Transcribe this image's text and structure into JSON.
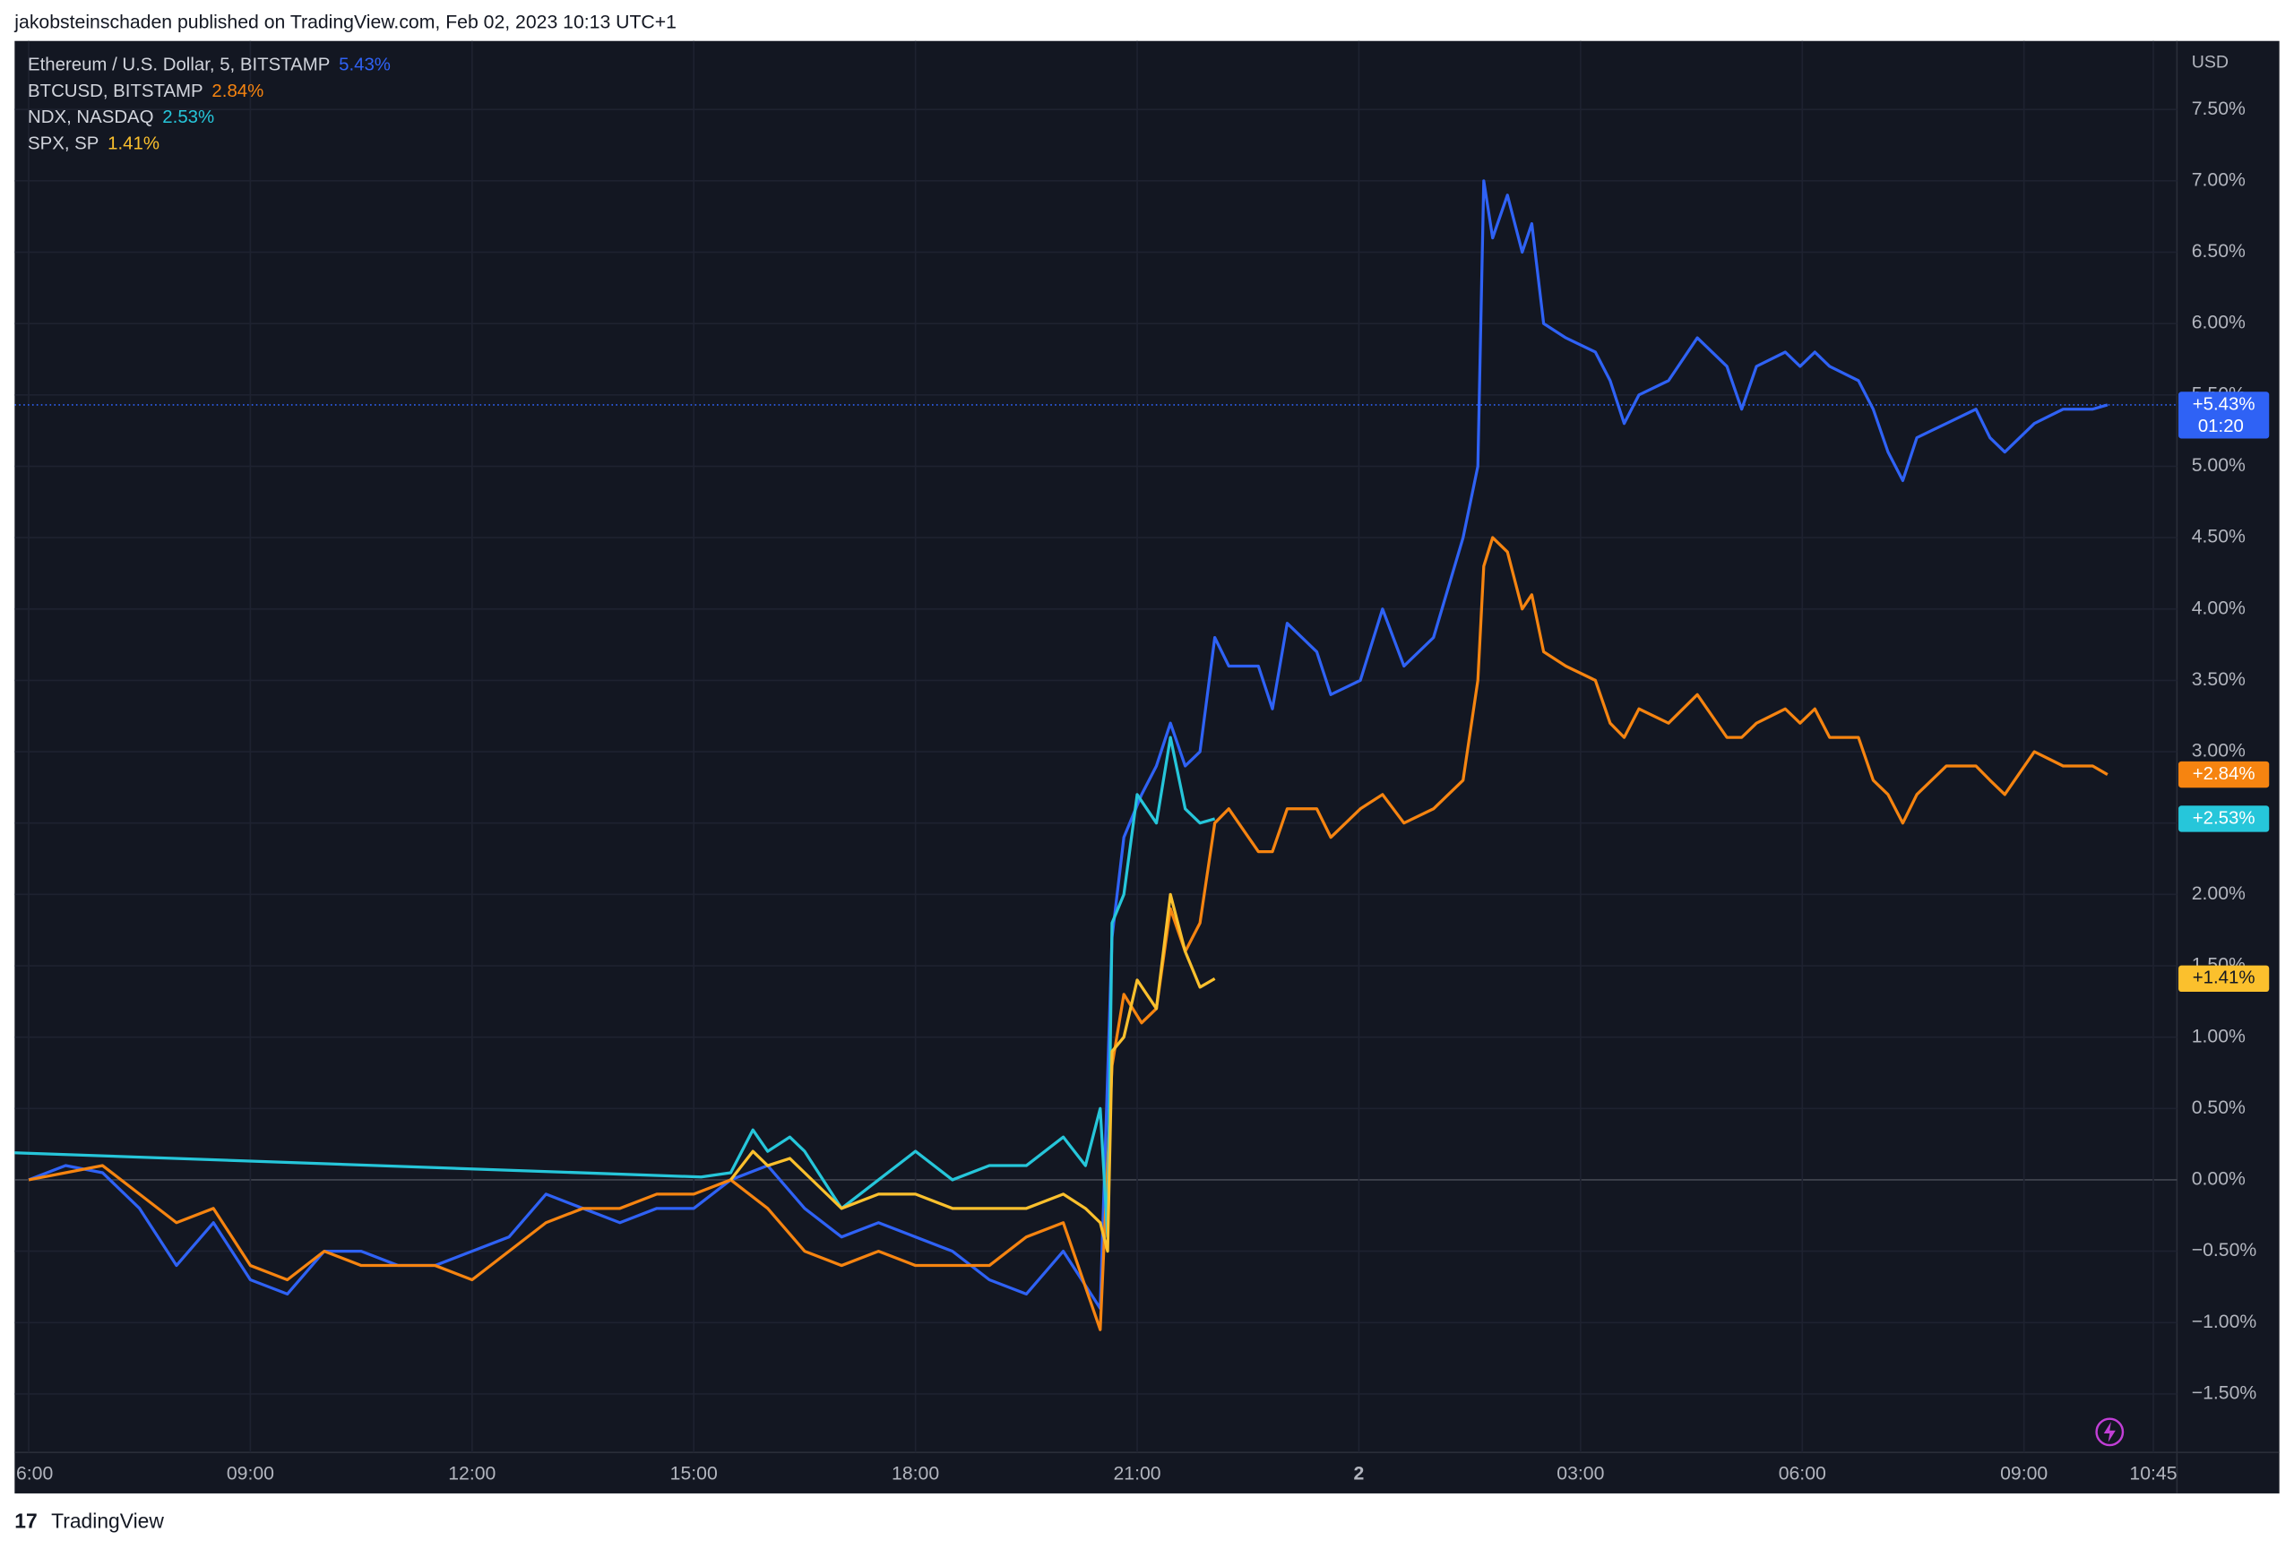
{
  "header": {
    "text": "jakobsteinschaden published on TradingView.com, Feb 02, 2023 10:13 UTC+1"
  },
  "footer": {
    "brand": "TradingView"
  },
  "chart_data": {
    "type": "line",
    "y_unit": "USD",
    "xlim": [
      5.81,
      35.07
    ],
    "xticks": [
      {
        "value": 6,
        "label": "6:00"
      },
      {
        "value": 9,
        "label": "09:00"
      },
      {
        "value": 12,
        "label": "12:00"
      },
      {
        "value": 15,
        "label": "15:00"
      },
      {
        "value": 18,
        "label": "18:00"
      },
      {
        "value": 21,
        "label": "21:00"
      },
      {
        "value": 24,
        "label": "2"
      },
      {
        "value": 27,
        "label": "03:00"
      },
      {
        "value": 30,
        "label": "06:00"
      },
      {
        "value": 33,
        "label": "09:00"
      },
      {
        "value": 34.75,
        "label": "10:45"
      }
    ],
    "ylim": [
      -1.91,
      7.98
    ],
    "yticks": [
      {
        "value": -1.5,
        "label": "−1.50%"
      },
      {
        "value": -1,
        "label": "−1.00%"
      },
      {
        "value": -0.5,
        "label": "−0.50%"
      },
      {
        "value": 0,
        "label": "0.00%"
      },
      {
        "value": 0.5,
        "label": "0.50%"
      },
      {
        "value": 1,
        "label": "1.00%"
      },
      {
        "value": 1.5,
        "label": "1.50%"
      },
      {
        "value": 2,
        "label": "2.00%"
      },
      {
        "value": 2.5,
        "label": "2.50%"
      },
      {
        "value": 3,
        "label": "3.00%"
      },
      {
        "value": 3.5,
        "label": "3.50%"
      },
      {
        "value": 4,
        "label": "4.00%"
      },
      {
        "value": 4.5,
        "label": "4.50%"
      },
      {
        "value": 5,
        "label": "5.00%"
      },
      {
        "value": 5.5,
        "label": "5.50%"
      },
      {
        "value": 6,
        "label": "6.00%"
      },
      {
        "value": 6.5,
        "label": "6.50%"
      },
      {
        "value": 7,
        "label": "7.00%"
      },
      {
        "value": 7.5,
        "label": "7.50%"
      }
    ],
    "grid": true,
    "series": [
      {
        "name": "Ethereum / U.S. Dollar, 5, BITSTAMP",
        "legend_value": "5.43%",
        "tag": "+5.43%",
        "countdown": "01:20",
        "color": "#2f62f5",
        "x": [
          6,
          6.5,
          7,
          7.5,
          8,
          8.5,
          9,
          9.5,
          10,
          10.5,
          11,
          11.5,
          12,
          12.5,
          13,
          13.5,
          14,
          14.5,
          15,
          15.5,
          16,
          16.5,
          17,
          17.5,
          18,
          18.5,
          19,
          19.5,
          20,
          20.5,
          20.66,
          20.82,
          21.06,
          21.26,
          21.45,
          21.65,
          21.85,
          22.05,
          22.24,
          22.64,
          22.83,
          23.03,
          23.43,
          23.62,
          24.02,
          24.32,
          24.61,
          25.01,
          25.41,
          25.61,
          25.69,
          25.81,
          26.01,
          26.21,
          26.34,
          26.5,
          26.8,
          27.2,
          27.4,
          27.59,
          27.79,
          28.19,
          28.58,
          28.98,
          29.18,
          29.38,
          29.77,
          29.97,
          30.17,
          30.37,
          30.76,
          30.96,
          31.16,
          31.36,
          31.55,
          31.95,
          32.35,
          32.54,
          32.74,
          33.14,
          33.53,
          33.93,
          34.13
        ],
        "values": [
          0,
          0.1,
          0.05,
          -0.2,
          -0.6,
          -0.3,
          -0.7,
          -0.8,
          -0.5,
          -0.5,
          -0.6,
          -0.6,
          -0.5,
          -0.4,
          -0.1,
          -0.2,
          -0.3,
          -0.2,
          -0.2,
          0,
          0.1,
          -0.2,
          -0.4,
          -0.3,
          -0.4,
          -0.5,
          -0.7,
          -0.8,
          -0.5,
          -0.9,
          1.7,
          2.4,
          2.7,
          2.9,
          3.2,
          2.9,
          3,
          3.8,
          3.6,
          3.6,
          3.3,
          3.9,
          3.7,
          3.4,
          3.5,
          4,
          3.6,
          3.8,
          4.5,
          5,
          7,
          6.6,
          6.9,
          6.5,
          6.7,
          6,
          5.9,
          5.8,
          5.6,
          5.3,
          5.5,
          5.6,
          5.9,
          5.7,
          5.4,
          5.7,
          5.8,
          5.7,
          5.8,
          5.7,
          5.6,
          5.4,
          5.1,
          4.9,
          5.2,
          5.3,
          5.4,
          5.2,
          5.1,
          5.3,
          5.4,
          5.4,
          5.43
        ]
      },
      {
        "name": "BTCUSD, BITSTAMP",
        "legend_value": "2.84%",
        "tag": "+2.84%",
        "color": "#f68410",
        "x": [
          6,
          6.5,
          7,
          7.5,
          8,
          8.5,
          9,
          9.5,
          10,
          10.5,
          11,
          11.5,
          12,
          12.5,
          13,
          13.5,
          14,
          14.5,
          15,
          15.5,
          16,
          16.5,
          17,
          17.5,
          18,
          18.5,
          19,
          19.5,
          20,
          20.5,
          20.66,
          20.82,
          21.06,
          21.26,
          21.45,
          21.65,
          21.85,
          22.05,
          22.24,
          22.64,
          22.83,
          23.03,
          23.43,
          23.62,
          24.02,
          24.32,
          24.61,
          25.01,
          25.41,
          25.61,
          25.69,
          25.81,
          26.01,
          26.21,
          26.34,
          26.5,
          26.8,
          27.2,
          27.4,
          27.59,
          27.79,
          28.19,
          28.58,
          28.98,
          29.18,
          29.38,
          29.77,
          29.97,
          30.17,
          30.37,
          30.76,
          30.96,
          31.16,
          31.36,
          31.55,
          31.95,
          32.35,
          32.54,
          32.74,
          33.14,
          33.53,
          33.93,
          34.13
        ],
        "values": [
          0,
          0.05,
          0.1,
          -0.1,
          -0.3,
          -0.2,
          -0.6,
          -0.7,
          -0.5,
          -0.6,
          -0.6,
          -0.6,
          -0.7,
          -0.5,
          -0.3,
          -0.2,
          -0.2,
          -0.1,
          -0.1,
          0,
          -0.2,
          -0.5,
          -0.6,
          -0.5,
          -0.6,
          -0.6,
          -0.6,
          -0.4,
          -0.3,
          -1.05,
          0.8,
          1.3,
          1.1,
          1.2,
          1.9,
          1.6,
          1.8,
          2.5,
          2.6,
          2.3,
          2.3,
          2.6,
          2.6,
          2.4,
          2.6,
          2.7,
          2.5,
          2.6,
          2.8,
          3.5,
          4.3,
          4.5,
          4.4,
          4,
          4.1,
          3.7,
          3.6,
          3.5,
          3.2,
          3.1,
          3.3,
          3.2,
          3.4,
          3.1,
          3.1,
          3.2,
          3.3,
          3.2,
          3.3,
          3.1,
          3.1,
          2.8,
          2.7,
          2.5,
          2.7,
          2.9,
          2.9,
          2.8,
          2.7,
          3,
          2.9,
          2.9,
          2.84
        ]
      },
      {
        "name": "NDX, NASDAQ",
        "legend_value": "2.53%",
        "tag": "+2.53%",
        "color": "#26c6da",
        "x": [
          5.81,
          15.1,
          15.5,
          15.8,
          16,
          16.3,
          16.5,
          17,
          17.5,
          18,
          18.5,
          19,
          19.5,
          20,
          20.3,
          20.5,
          20.6,
          20.66,
          20.82,
          21,
          21.26,
          21.45,
          21.65,
          21.85,
          22.05
        ],
        "values": [
          0.19,
          0.02,
          0.05,
          0.35,
          0.2,
          0.3,
          0.2,
          -0.2,
          0,
          0.2,
          0,
          0.1,
          0.1,
          0.3,
          0.1,
          0.5,
          -0.4,
          1.8,
          2,
          2.7,
          2.5,
          3.1,
          2.6,
          2.5,
          2.53
        ]
      },
      {
        "name": "SPX, SP",
        "legend_value": "1.41%",
        "tag": "+1.41%",
        "color": "#fbc02d",
        "x": [
          15.5,
          15.8,
          16,
          16.3,
          16.5,
          17,
          17.5,
          18,
          18.5,
          19,
          19.5,
          20,
          20.3,
          20.5,
          20.6,
          20.66,
          20.82,
          21,
          21.26,
          21.45,
          21.65,
          21.85,
          22.05
        ],
        "values": [
          0,
          0.2,
          0.1,
          0.15,
          0.05,
          -0.2,
          -0.1,
          -0.1,
          -0.2,
          -0.2,
          -0.2,
          -0.1,
          -0.2,
          -0.3,
          -0.5,
          0.9,
          1,
          1.4,
          1.2,
          2,
          1.6,
          1.35,
          1.41
        ]
      }
    ]
  }
}
